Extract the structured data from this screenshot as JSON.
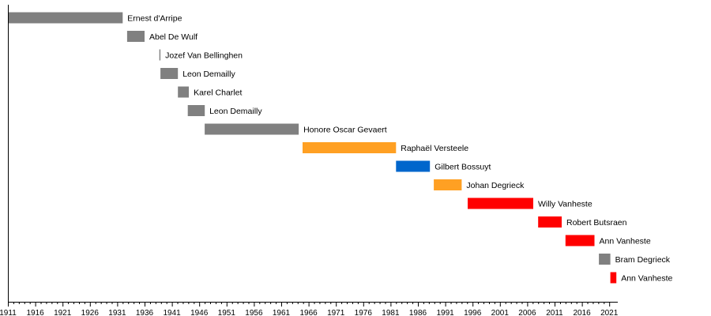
{
  "chart_data": {
    "type": "bar",
    "orientation": "horizontal-timeline",
    "x_ticks": [
      "1911",
      "1916",
      "1921",
      "1926",
      "1931",
      "1936",
      "1941",
      "1946",
      "1951",
      "1956",
      "1961",
      "1966",
      "1971",
      "1976",
      "1981",
      "1986",
      "1991",
      "1996",
      "2001",
      "2006",
      "2011",
      "2016",
      "2021"
    ],
    "xlim": [
      1911,
      2022.3
    ],
    "grid": false,
    "legend": "none",
    "colors": {
      "gray": "#808080",
      "orange": "#ffa023",
      "blue": "#0066cc",
      "red": "#ff0000"
    },
    "series": [
      {
        "label": "Ernest d'Arripe",
        "start": 1911,
        "end": 1932,
        "color": "gray"
      },
      {
        "label": "Abel De Wulf",
        "start": 1932.8,
        "end": 1936,
        "color": "gray"
      },
      {
        "label": "Jozef Van Bellinghen",
        "start": 1938.7,
        "end": 1938.9,
        "color": "gray"
      },
      {
        "label": "Leon Demailly",
        "start": 1938.9,
        "end": 1942.1,
        "color": "gray"
      },
      {
        "label": "Karel Charlet",
        "start": 1942.1,
        "end": 1944.1,
        "color": "gray"
      },
      {
        "label": "Leon Demailly",
        "start": 1943.9,
        "end": 1947,
        "color": "gray"
      },
      {
        "label": "Honore Oscar Gevaert",
        "start": 1947,
        "end": 1964.2,
        "color": "gray"
      },
      {
        "label": "Raphaël Versteele",
        "start": 1964.9,
        "end": 1982,
        "color": "orange"
      },
      {
        "label": "Gilbert Bossuyt",
        "start": 1982,
        "end": 1988.2,
        "color": "blue"
      },
      {
        "label": "Johan Degrieck",
        "start": 1988.9,
        "end": 1994,
        "color": "orange"
      },
      {
        "label": "Willy Vanheste",
        "start": 1995.1,
        "end": 2007.1,
        "color": "red"
      },
      {
        "label": "Robert Butsraen",
        "start": 2008,
        "end": 2012.3,
        "color": "red"
      },
      {
        "label": "Ann Vanheste",
        "start": 2013,
        "end": 2018.3,
        "color": "red"
      },
      {
        "label": "Bram Degrieck",
        "start": 2019.1,
        "end": 2021.2,
        "color": "gray"
      },
      {
        "label": "Ann Vanheste",
        "start": 2021.2,
        "end": 2022.3,
        "color": "red"
      }
    ]
  }
}
